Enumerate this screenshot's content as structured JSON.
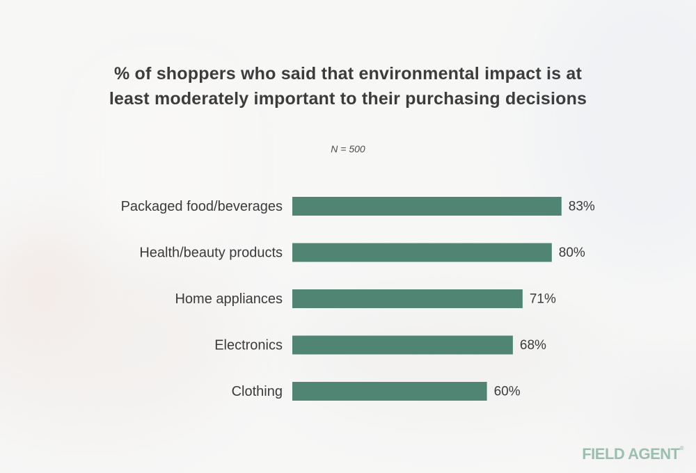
{
  "chart_data": {
    "type": "bar",
    "orientation": "horizontal",
    "title": "% of shoppers who said that environmental impact is at least moderately important to their purchasing decisions",
    "subtitle": "N = 500",
    "categories": [
      "Packaged food/beverages",
      "Health/beauty products",
      "Home appliances",
      "Electronics",
      "Clothing"
    ],
    "values": [
      83,
      80,
      71,
      68,
      60
    ],
    "value_labels": [
      "83%",
      "80%",
      "71%",
      "68%",
      "60%"
    ],
    "unit": "%",
    "xlim": [
      0,
      100
    ],
    "grid": false,
    "legend": "none",
    "bar_color": "#4f8572"
  },
  "branding": {
    "logo_text": "FIELD AGENT",
    "logo_mark": "®"
  }
}
